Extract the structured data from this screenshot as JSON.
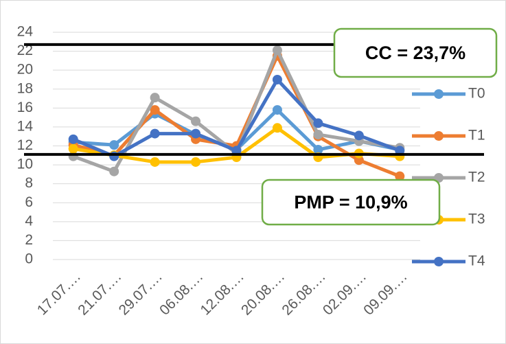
{
  "chart_data": {
    "type": "line",
    "categories": [
      "17.07.…",
      "21.07.…",
      "29.07.…",
      "06.08.…",
      "12.08.…",
      "20.08.…",
      "26.08.…",
      "02.09.…",
      "09.09.…"
    ],
    "series": [
      {
        "name": "T0",
        "color": "#5b9bd5",
        "values": [
          12.4,
          12.1,
          15.4,
          13.2,
          11.6,
          15.8,
          11.6,
          12.5,
          11.6
        ]
      },
      {
        "name": "T1",
        "color": "#ed7d31",
        "values": [
          12.1,
          11.0,
          15.8,
          12.7,
          12.0,
          21.5,
          13.0,
          10.5,
          8.8
        ]
      },
      {
        "name": "T2",
        "color": "#a5a5a5",
        "values": [
          10.9,
          9.3,
          17.1,
          14.6,
          11.2,
          22.1,
          13.2,
          12.5,
          11.8
        ]
      },
      {
        "name": "T3",
        "color": "#ffc000",
        "values": [
          11.7,
          11.0,
          10.3,
          10.3,
          10.8,
          13.9,
          10.8,
          11.2,
          10.9
        ]
      },
      {
        "name": "T4",
        "color": "#4472c4",
        "values": [
          12.7,
          10.9,
          13.3,
          13.3,
          11.5,
          19.0,
          14.4,
          13.1,
          11.5
        ]
      }
    ],
    "ylim": [
      0,
      24
    ],
    "yticks": [
      0,
      2,
      4,
      6,
      8,
      10,
      12,
      14,
      16,
      18,
      20,
      22,
      24
    ],
    "hlines": [
      22.7,
      11.1
    ],
    "annotations": [
      "CC = 23,7%",
      "PMP = 10,9%"
    ]
  }
}
